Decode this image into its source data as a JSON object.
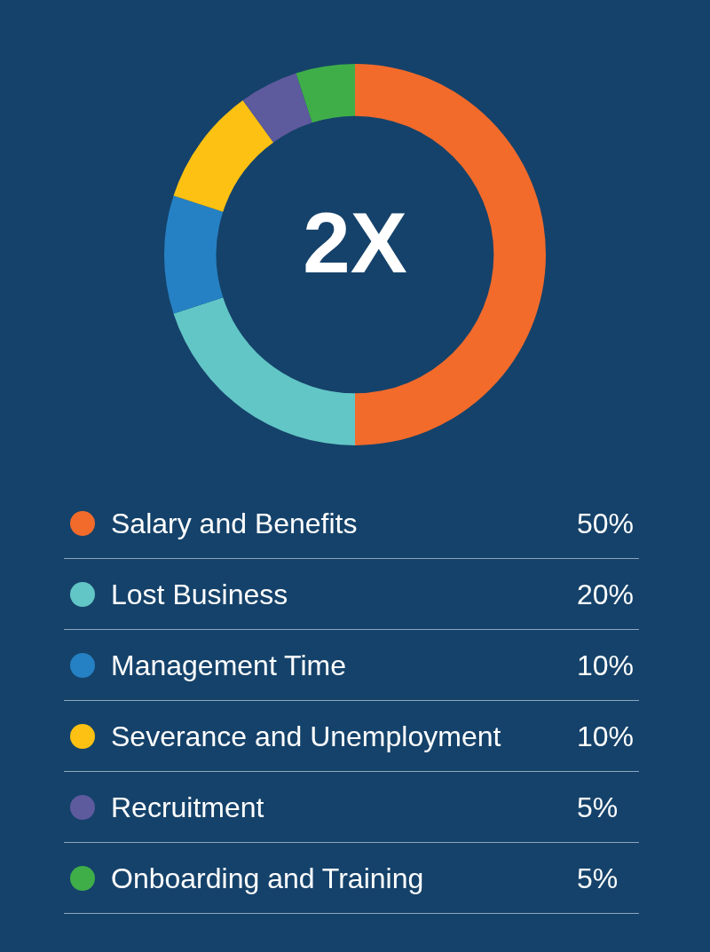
{
  "chart_data": {
    "type": "donut",
    "annotations": [
      "2X"
    ],
    "categories": [
      "Salary and Benefits",
      "Lost Business",
      "Management Time",
      "Severance and Unemployment",
      "Recruitment",
      "Onboarding and Training"
    ],
    "values": [
      50,
      20,
      10,
      10,
      5,
      5
    ],
    "colors": [
      "#f26b2b",
      "#62c6c6",
      "#2581c4",
      "#fdc113",
      "#5e5a9e",
      "#3fae49"
    ],
    "value_labels": [
      "50%",
      "20%",
      "10%",
      "10%",
      "5%",
      "5%"
    ],
    "legend": "bottom"
  }
}
